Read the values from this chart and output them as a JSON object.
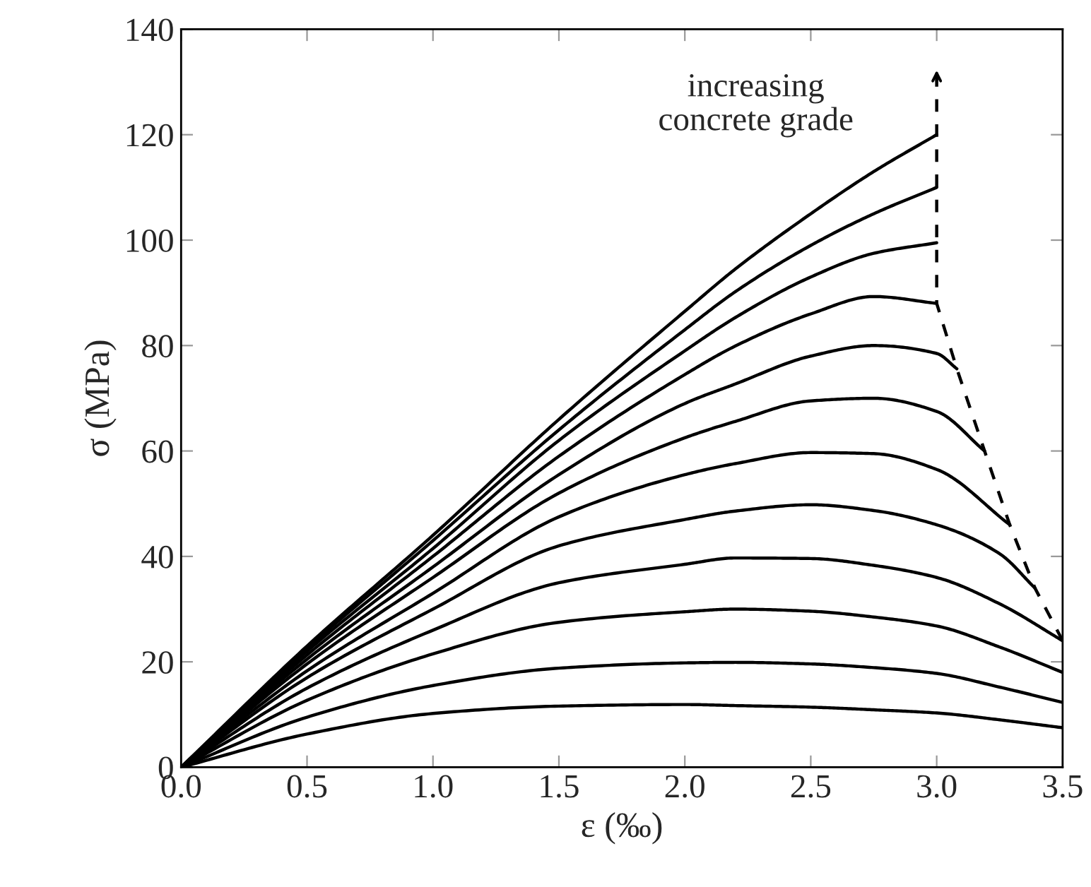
{
  "chart_data": {
    "type": "line",
    "xlabel": "ε (‰)",
    "ylabel": "σ (MPa)",
    "annotations": [
      "increasing\nconcrete grade"
    ],
    "xlim": [
      0,
      3.5
    ],
    "ylim": [
      0,
      140
    ],
    "xticks": [
      {
        "value": 0,
        "label": "0.0"
      },
      {
        "value": 0.5,
        "label": "0.5"
      },
      {
        "value": 1,
        "label": "1.0"
      },
      {
        "value": 1.5,
        "label": "1.5"
      },
      {
        "value": 2,
        "label": "2.0"
      },
      {
        "value": 2.5,
        "label": "2.5"
      },
      {
        "value": 3,
        "label": "3.0"
      },
      {
        "value": 3.5,
        "label": "3.5"
      }
    ],
    "yticks": [
      0,
      20,
      40,
      60,
      80,
      100,
      120,
      140
    ],
    "grid": false,
    "legend": false,
    "line_style": "solid",
    "series": [
      {
        "color": "#000000",
        "x": [
          0,
          0.5,
          1,
          1.5,
          2,
          2.2,
          2.5,
          2.75,
          3,
          3.25,
          3.5
        ],
        "values": [
          0,
          6.3,
          10.2,
          11.6,
          11.9,
          11.7,
          11.4,
          10.9,
          10.3,
          9,
          7.5
        ]
      },
      {
        "color": "#000000",
        "x": [
          0,
          0.5,
          1,
          1.5,
          2,
          2.2,
          2.5,
          2.75,
          3,
          3.25,
          3.5
        ],
        "values": [
          0,
          9.5,
          15.5,
          18.8,
          19.8,
          19.9,
          19.6,
          18.9,
          17.8,
          15.2,
          12.3
        ]
      },
      {
        "color": "#000000",
        "x": [
          0,
          0.5,
          1,
          1.5,
          2,
          2.2,
          2.5,
          2.75,
          3,
          3.25,
          3.5
        ],
        "values": [
          0,
          12.7,
          21.5,
          27.5,
          29.5,
          30,
          29.6,
          28.5,
          26.8,
          22.8,
          18
        ]
      },
      {
        "color": "#000000",
        "x": [
          0,
          0.5,
          1,
          1.5,
          2,
          2.2,
          2.5,
          2.75,
          3,
          3.25,
          3.5
        ],
        "values": [
          0,
          15,
          26,
          35,
          38.5,
          39.7,
          39.6,
          38.3,
          36,
          31,
          24
        ]
      },
      {
        "color": "#000000",
        "x": [
          0,
          0.5,
          1,
          1.5,
          2,
          2.2,
          2.5,
          2.75,
          3,
          3.25,
          3.39
        ],
        "values": [
          0,
          17,
          30,
          42,
          47,
          48.6,
          49.8,
          48.7,
          46,
          40.5,
          34
        ]
      },
      {
        "color": "#000000",
        "x": [
          0,
          0.5,
          1,
          1.5,
          2,
          2.2,
          2.5,
          2.75,
          3,
          3.29
        ],
        "values": [
          0,
          18.3,
          33,
          47.5,
          55.5,
          57.6,
          59.7,
          59.5,
          56.5,
          46
        ]
      },
      {
        "color": "#000000",
        "x": [
          0,
          0.5,
          1,
          1.5,
          2,
          2.2,
          2.5,
          2.75,
          3,
          3.19
        ],
        "values": [
          0,
          19.6,
          36,
          52,
          62.5,
          65.6,
          69.5,
          70,
          67.5,
          60
        ]
      },
      {
        "color": "#000000",
        "x": [
          0,
          0.5,
          1,
          1.5,
          2,
          2.2,
          2.5,
          2.75,
          3,
          3.08
        ],
        "values": [
          0,
          20.5,
          38,
          55.5,
          69,
          72.7,
          78,
          80,
          78.5,
          75.6
        ]
      },
      {
        "color": "#000000",
        "x": [
          0,
          0.5,
          1,
          1.5,
          2,
          2.2,
          2.5,
          2.75,
          3
        ],
        "values": [
          0,
          21.3,
          40,
          59,
          74.5,
          79.9,
          86,
          89.3,
          88
        ]
      },
      {
        "color": "#000000",
        "x": [
          0,
          0.5,
          1,
          1.5,
          2,
          2.2,
          2.5,
          2.75,
          3
        ],
        "values": [
          0,
          22,
          41.5,
          62,
          79,
          85.3,
          93,
          97.5,
          99.5
        ]
      },
      {
        "color": "#000000",
        "x": [
          0,
          0.5,
          1,
          1.5,
          2,
          2.2,
          2.5,
          2.75,
          3
        ],
        "values": [
          0,
          22.5,
          43,
          64,
          83,
          90.2,
          99,
          105,
          110
        ]
      },
      {
        "color": "#000000",
        "x": [
          0,
          0.5,
          1,
          1.5,
          2,
          2.2,
          2.5,
          2.75,
          3
        ],
        "values": [
          0,
          23,
          44,
          66,
          86.5,
          94.5,
          105,
          113,
          120
        ]
      },
      {
        "color": "#000000",
        "line_style": "dashed",
        "x": [
          3.5,
          3.39,
          3.29,
          3.19,
          3.08,
          3,
          3
        ],
        "values": [
          24,
          34,
          46,
          60,
          75.6,
          88,
          133
        ]
      }
    ]
  }
}
